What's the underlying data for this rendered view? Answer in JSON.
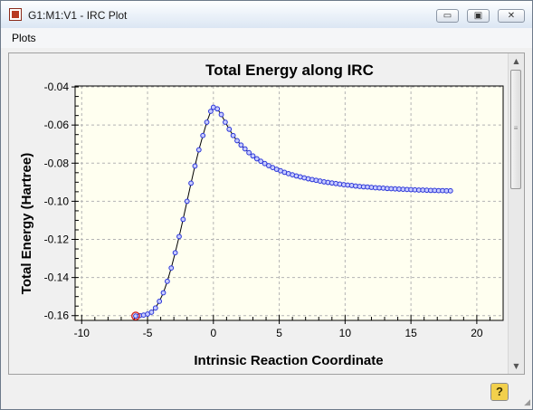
{
  "window": {
    "title": "G1:M1:V1 - IRC Plot",
    "buttons": {
      "minimize": "▭",
      "maximize": "▣",
      "close": "✕"
    }
  },
  "menu": {
    "items": [
      "Plots"
    ]
  },
  "icons": {
    "app": "gaussview-app-icon",
    "help": "help-icon",
    "help_glyph": "?",
    "scroll_up": "▲",
    "scroll_down": "▼",
    "grip": "≡",
    "resize": "◢"
  },
  "colors": {
    "marker": "#2a35d8",
    "marker_fill": "#c8ccff",
    "line": "#000000",
    "plot_bg": "#fffff0",
    "start_marker": "#d02020"
  },
  "chart_data": {
    "type": "line",
    "title": "Total Energy along IRC",
    "xlabel": "Intrinsic Reaction Coordinate",
    "ylabel": "Total Energy (Hartree)",
    "xlim": [
      -10.5,
      22
    ],
    "ylim": [
      -0.1625,
      -0.0395
    ],
    "xticks": [
      -10,
      -5,
      0,
      5,
      10,
      15,
      20
    ],
    "yticks": [
      -0.16,
      -0.14,
      -0.12,
      -0.1,
      -0.08,
      -0.06,
      -0.04
    ],
    "ytick_labels": [
      "-0.16",
      "-0.14",
      "-0.12",
      "-0.10",
      "-0.08",
      "-0.06",
      "-0.04"
    ],
    "grid": true,
    "highlighted_point": [
      -5.9,
      -0.1602
    ],
    "series": [
      {
        "x": [
          -5.9,
          -5.6,
          -5.3,
          -5.0,
          -4.7,
          -4.4,
          -4.1,
          -3.8,
          -3.5,
          -3.2,
          -2.9,
          -2.6,
          -2.3,
          -2.0,
          -1.7,
          -1.4,
          -1.1,
          -0.8,
          -0.5,
          -0.2,
          0.0,
          0.3,
          0.6,
          0.9,
          1.2,
          1.5,
          1.8,
          2.1,
          2.4,
          2.7,
          3.0,
          3.3,
          3.6,
          3.9,
          4.2,
          4.5,
          4.8,
          5.1,
          5.4,
          5.7,
          6.0,
          6.3,
          6.6,
          6.9,
          7.2,
          7.5,
          7.8,
          8.1,
          8.4,
          8.7,
          9.0,
          9.3,
          9.6,
          9.9,
          10.2,
          10.5,
          10.8,
          11.1,
          11.4,
          11.7,
          12.0,
          12.3,
          12.6,
          12.9,
          13.2,
          13.5,
          13.8,
          14.1,
          14.4,
          14.7,
          15.0,
          15.3,
          15.6,
          15.9,
          16.2,
          16.5,
          16.8,
          17.1,
          17.4,
          17.7,
          18.0
        ],
        "y": [
          -0.1602,
          -0.16,
          -0.1597,
          -0.1592,
          -0.1582,
          -0.156,
          -0.1525,
          -0.148,
          -0.142,
          -0.135,
          -0.127,
          -0.1185,
          -0.1095,
          -0.1,
          -0.0905,
          -0.0815,
          -0.073,
          -0.0655,
          -0.0585,
          -0.0528,
          -0.0507,
          -0.0515,
          -0.0545,
          -0.0585,
          -0.0622,
          -0.0655,
          -0.0682,
          -0.0705,
          -0.0725,
          -0.0745,
          -0.0762,
          -0.0777,
          -0.079,
          -0.0802,
          -0.0813,
          -0.0823,
          -0.0832,
          -0.084,
          -0.0848,
          -0.0855,
          -0.0861,
          -0.0867,
          -0.0872,
          -0.0877,
          -0.0882,
          -0.0886,
          -0.089,
          -0.0894,
          -0.0898,
          -0.0901,
          -0.0904,
          -0.0907,
          -0.091,
          -0.0913,
          -0.0915,
          -0.0917,
          -0.092,
          -0.0922,
          -0.0924,
          -0.0925,
          -0.0927,
          -0.0929,
          -0.093,
          -0.0931,
          -0.0933,
          -0.0934,
          -0.0935,
          -0.0936,
          -0.0937,
          -0.0938,
          -0.0939,
          -0.094,
          -0.0941,
          -0.0941,
          -0.0942,
          -0.0943,
          -0.0943,
          -0.0944,
          -0.0944,
          -0.0945,
          -0.0945
        ]
      }
    ]
  }
}
